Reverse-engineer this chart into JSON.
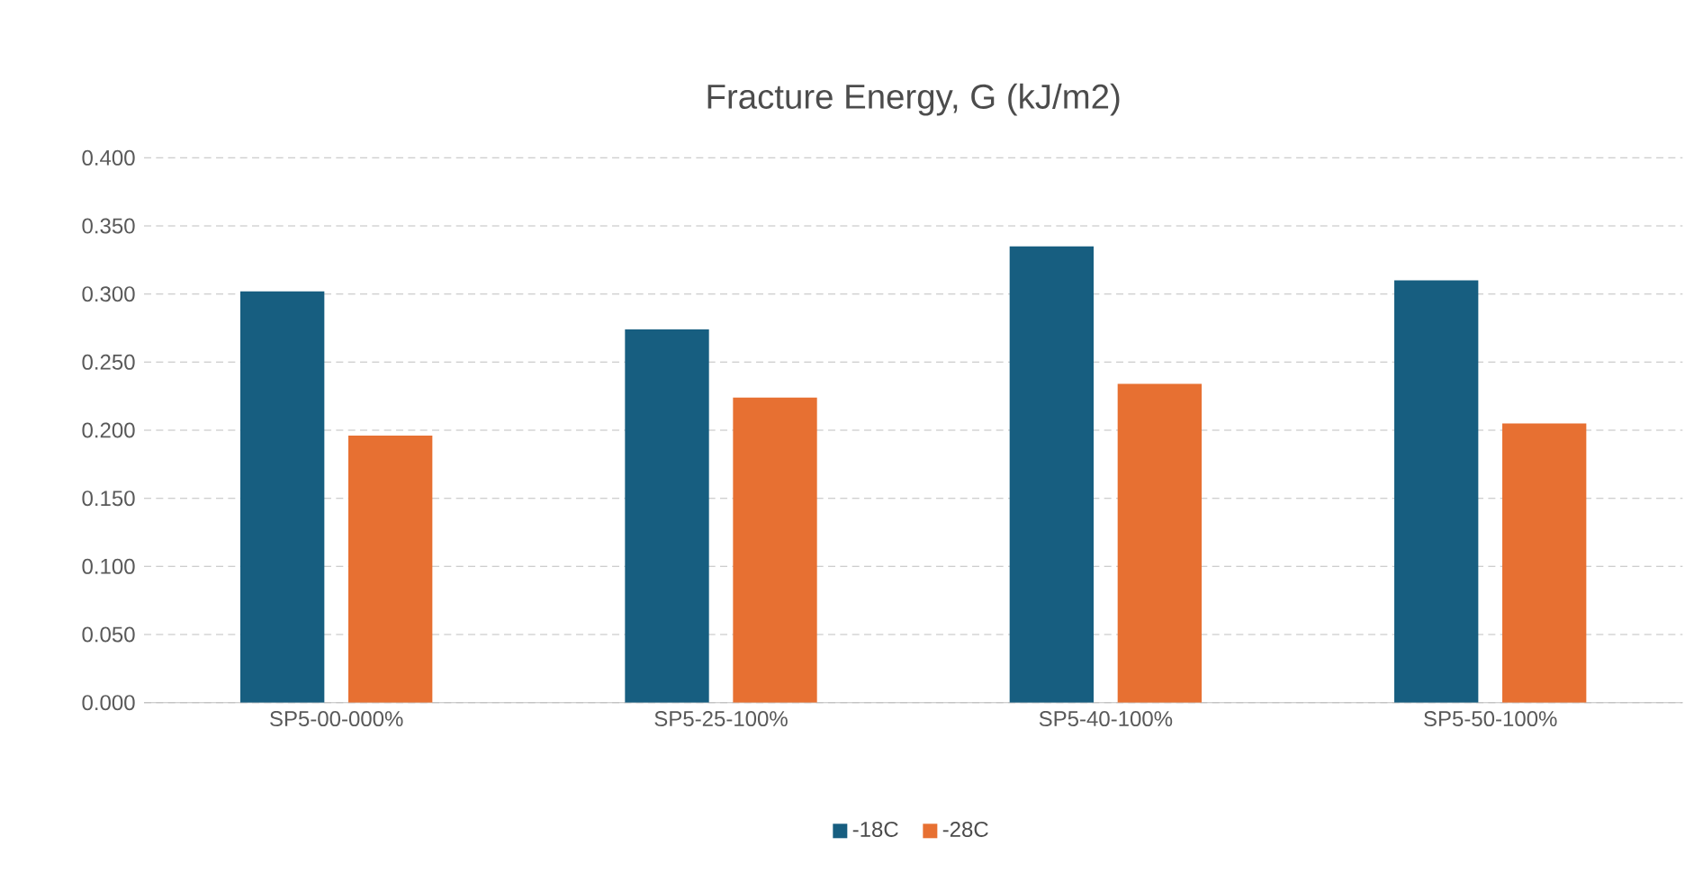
{
  "chart_data": {
    "type": "bar",
    "title": "Fracture Energy, G (kJ/m2)",
    "categories": [
      "SP5-00-000%",
      "SP5-25-100%",
      "SP5-40-100%",
      "SP5-50-100%"
    ],
    "series": [
      {
        "name": "-18C",
        "color": "#175e80",
        "values": [
          0.302,
          0.274,
          0.335,
          0.31
        ]
      },
      {
        "name": "-28C",
        "color": "#e77032",
        "values": [
          0.196,
          0.224,
          0.234,
          0.205
        ]
      }
    ],
    "ylim": [
      0,
      0.4
    ],
    "yticks": [
      {
        "value": 0,
        "label": "0.000"
      },
      {
        "value": 0.05,
        "label": "0.050"
      },
      {
        "value": 0.1,
        "label": "0.100"
      },
      {
        "value": 0.15,
        "label": "0.150"
      },
      {
        "value": 0.2,
        "label": "0.200"
      },
      {
        "value": 0.25,
        "label": "0.250"
      },
      {
        "value": 0.3,
        "label": "0.300"
      },
      {
        "value": 0.35,
        "label": "0.350"
      },
      {
        "value": 0.4,
        "label": "0.400"
      }
    ],
    "grid": "y",
    "legend": "bottom"
  }
}
